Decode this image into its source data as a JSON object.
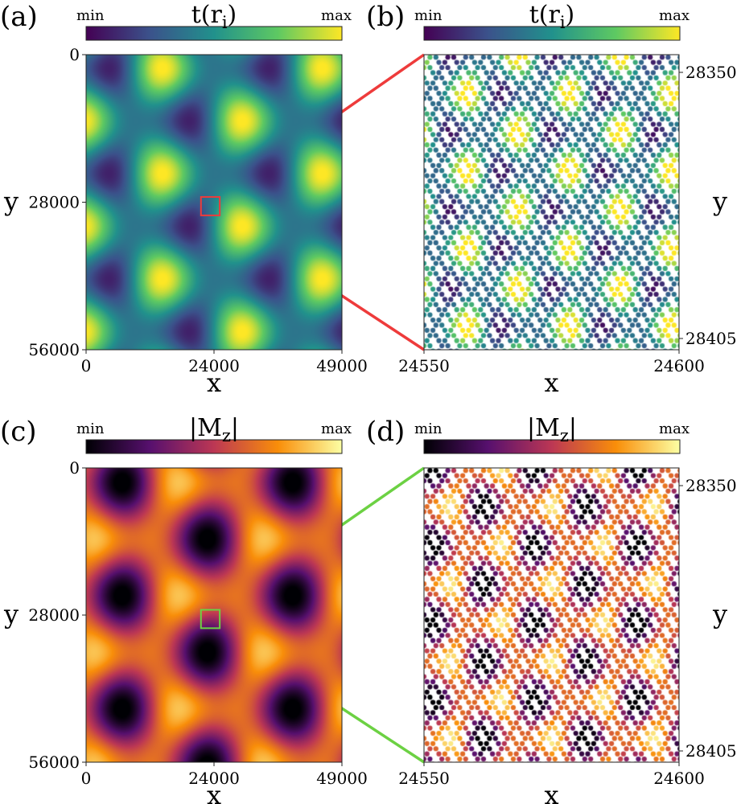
{
  "chart_data": [
    {
      "panel": "(a)",
      "type": "heatmap",
      "colormap": "viridis",
      "colorbar": {
        "title": "t(r",
        "subscript": "i",
        "close": ")",
        "min_label": "min",
        "max_label": "max"
      },
      "xlabel": "x",
      "ylabel": "y",
      "xlim": [
        0,
        49000
      ],
      "ylim": [
        0,
        56000
      ],
      "xticks": [
        "0",
        "24000",
        "49000"
      ],
      "yticks": [
        "0",
        "28000",
        "56000"
      ],
      "zoom_box": {
        "x": [
          22000,
          25600
        ],
        "y": [
          27000,
          30500
        ],
        "color": "#ee3b3b"
      }
    },
    {
      "panel": "(b)",
      "type": "heatmap",
      "colormap": "viridis",
      "colorbar": {
        "title": "t(r",
        "subscript": "i",
        "close": ")",
        "min_label": "min",
        "max_label": "max"
      },
      "xlabel": "x",
      "ylabel": "y",
      "xlim": [
        24550,
        24600
      ],
      "ylim": [
        28340,
        28410
      ],
      "xticks": [
        "24550",
        "24600"
      ],
      "yticks": [
        "28350",
        "28405"
      ]
    },
    {
      "panel": "(c)",
      "type": "heatmap",
      "colormap": "inferno",
      "colorbar": {
        "title": "|M",
        "subscript": "z",
        "close": "|",
        "min_label": "min",
        "max_label": "max"
      },
      "xlabel": "x",
      "ylabel": "y",
      "xlim": [
        0,
        49000
      ],
      "ylim": [
        0,
        56000
      ],
      "xticks": [
        "0",
        "24000",
        "49000"
      ],
      "yticks": [
        "0",
        "28000",
        "56000"
      ],
      "zoom_box": {
        "x": [
          22000,
          25600
        ],
        "y": [
          27000,
          30500
        ],
        "color": "#6cd143"
      }
    },
    {
      "panel": "(d)",
      "type": "heatmap",
      "colormap": "inferno",
      "colorbar": {
        "title": "|M",
        "subscript": "z",
        "close": "|",
        "min_label": "min",
        "max_label": "max"
      },
      "xlabel": "x",
      "ylabel": "y",
      "xlim": [
        24550,
        24600
      ],
      "ylim": [
        28340,
        28410
      ],
      "xticks": [
        "24550",
        "24600"
      ],
      "yticks": [
        "28350",
        "28405"
      ]
    }
  ]
}
